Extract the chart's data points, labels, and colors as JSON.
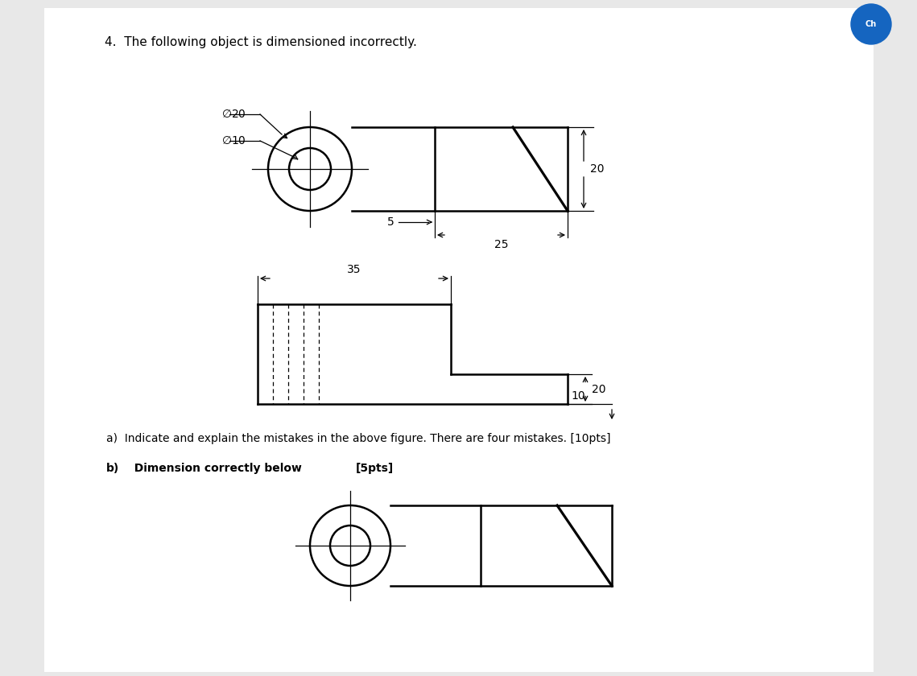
{
  "title": "4.  The following object is dimensioned incorrectly.",
  "bg_color": "#e8e8e8",
  "page_bg": "#ffffff",
  "text_a": "a)  Indicate and explain the mistakes in the above figure. There are four mistakes. [10pts]",
  "text_b_normal": "b)  Dimension correctly below ",
  "text_b_bold": "[5pts]",
  "line_color": "#000000"
}
